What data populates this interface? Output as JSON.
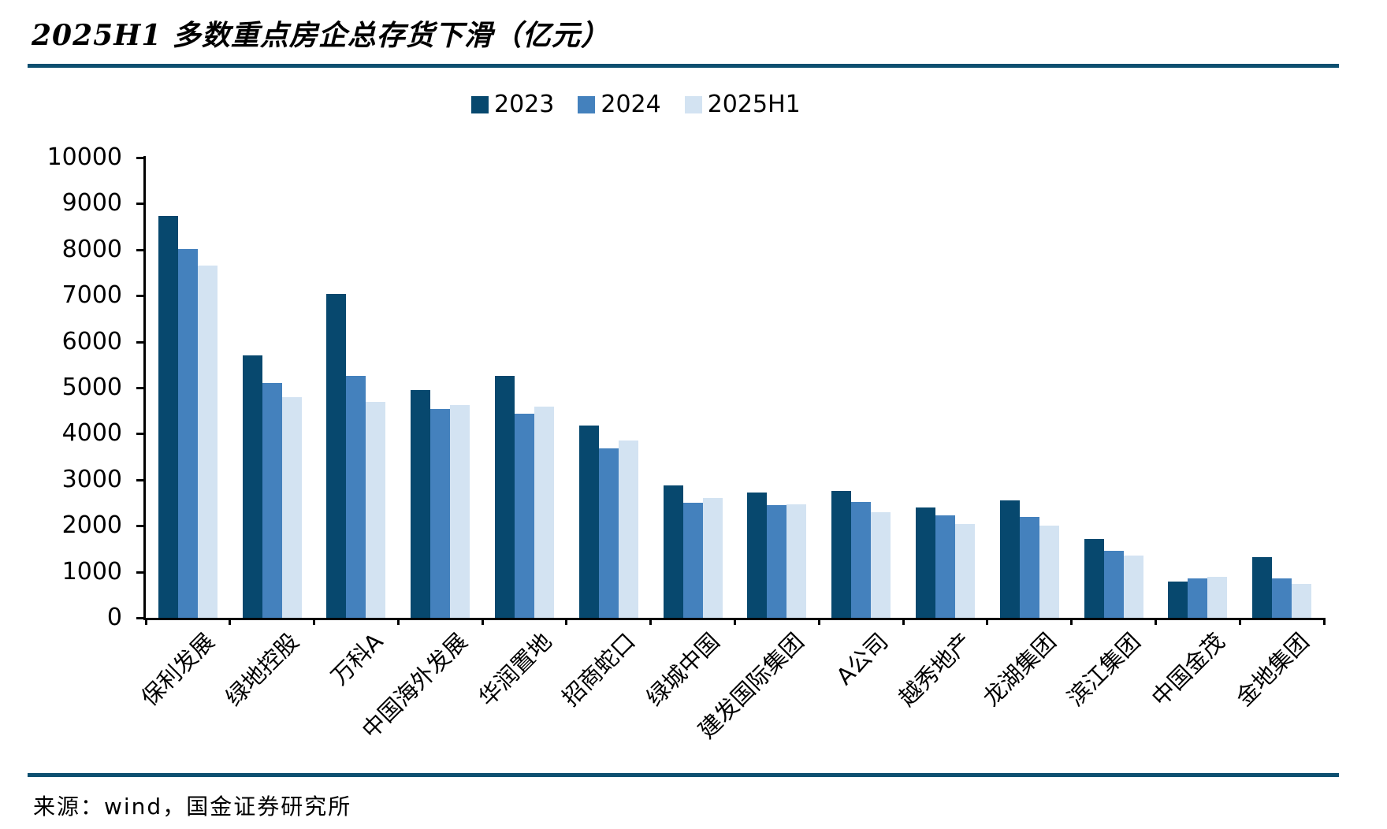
{
  "title": "2025H1 多数重点房企总存货下滑（亿元）",
  "source": "来源：wind，国金证券研究所",
  "colors": {
    "series_2023": "#07486E",
    "series_2024": "#4481BD",
    "series_2025h1": "#D3E3F2",
    "divider": "#0D4F70",
    "axis": "#000000",
    "text": "#000000"
  },
  "chart_data": {
    "type": "bar",
    "title": "2025H1 多数重点房企总存货下滑（亿元）",
    "unit": "亿元",
    "categories": [
      "保利发展",
      "绿地控股",
      "万科A",
      "中国海外发展",
      "华润置地",
      "招商蛇口",
      "绿城中国",
      "建发国际集团",
      "A公司",
      "越秀地产",
      "龙湖集团",
      "滨江集团",
      "中国金茂",
      "金地集团"
    ],
    "series": [
      {
        "name": "2023",
        "color_key": "series_2023",
        "values": [
          8740,
          5710,
          7040,
          4950,
          5260,
          4170,
          2870,
          2720,
          2760,
          2400,
          2550,
          1720,
          780,
          1310
        ]
      },
      {
        "name": "2024",
        "color_key": "series_2024",
        "values": [
          8010,
          5100,
          5260,
          4540,
          4430,
          3690,
          2500,
          2450,
          2510,
          2230,
          2190,
          1460,
          850,
          850
        ]
      },
      {
        "name": "2025H1",
        "color_key": "series_2025h1",
        "values": [
          7660,
          4800,
          4700,
          4630,
          4590,
          3850,
          2610,
          2460,
          2300,
          2030,
          2000,
          1350,
          890,
          740
        ]
      }
    ],
    "ylim": [
      0,
      10000
    ],
    "ytick_interval": 1000,
    "ytick_labels": [
      "0",
      "1000",
      "2000",
      "3000",
      "4000",
      "5000",
      "6000",
      "7000",
      "8000",
      "9000",
      "10000"
    ],
    "legend_position": "top-center",
    "legend_entries": [
      "2023",
      "2024",
      "2025H1"
    ],
    "grid": false
  }
}
